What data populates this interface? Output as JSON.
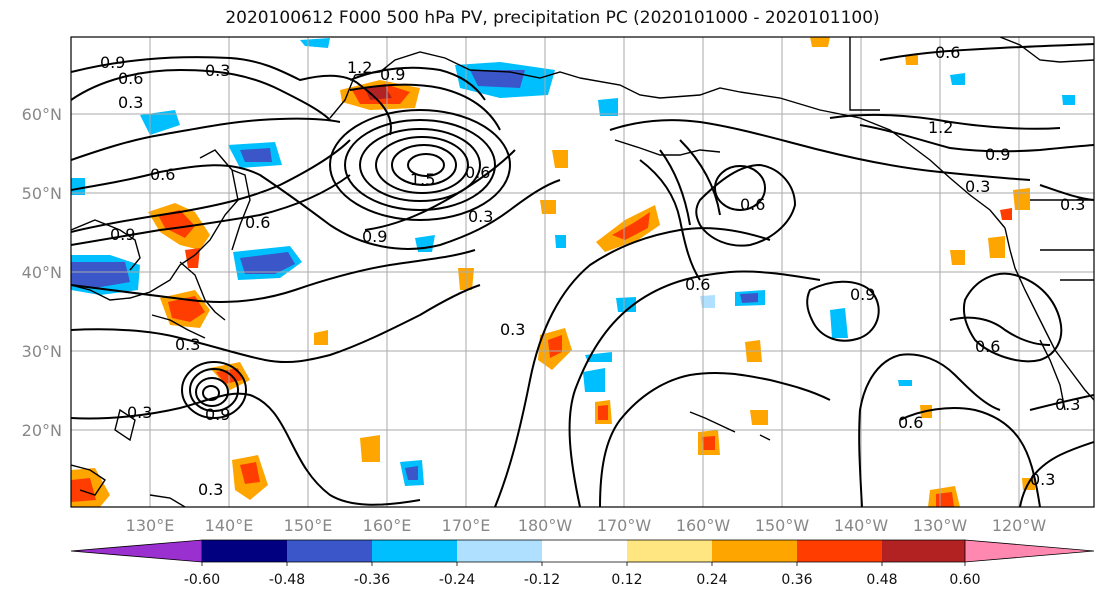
{
  "title": "2020100612 F000 500 hPa PV, precipitation PC (2020101000 - 2020101100)",
  "map": {
    "lat_labels": [
      "60°N",
      "50°N",
      "40°N",
      "30°N",
      "20°N"
    ],
    "lon_labels": [
      "130°E",
      "140°E",
      "150°E",
      "160°E",
      "170°E",
      "180°W",
      "170°W",
      "160°W",
      "150°W",
      "140°W",
      "130°W",
      "120°W"
    ],
    "contour_labels": [
      "0.9",
      "0.6",
      "0.3",
      "0.3",
      "1.2",
      "0.9",
      "0.6",
      "0.9",
      "0.6",
      "0.9",
      "0.3",
      "0.3",
      "0.3",
      "0.6",
      "1.5",
      "0.6",
      "0.3",
      "0.9",
      "1.2",
      "0.9",
      "0.3",
      "0.6",
      "0.6",
      "0.3",
      "0.6",
      "0.3",
      "0.3",
      "0.3",
      "0.9",
      "0.6"
    ]
  },
  "colorbar": {
    "ticks": [
      "-0.60",
      "-0.48",
      "-0.36",
      "-0.24",
      "-0.12",
      "0.12",
      "0.24",
      "0.36",
      "0.48",
      "0.60"
    ],
    "colors": [
      "#9b30d0",
      "#000080",
      "#3a56c8",
      "#00bfff",
      "#b0e0ff",
      "#ffffff",
      "#ffe680",
      "#ffa500",
      "#ff3d00",
      "#b22222",
      "#ff88b0"
    ]
  }
}
